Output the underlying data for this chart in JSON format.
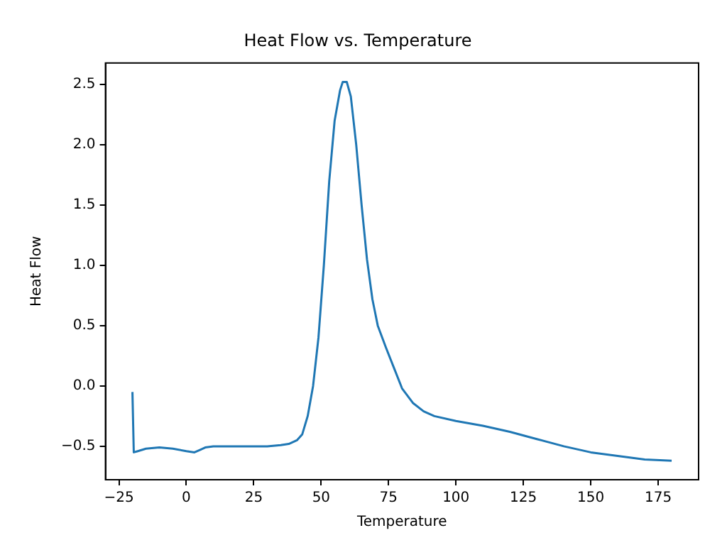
{
  "chart_data": {
    "type": "line",
    "title": "Heat Flow vs. Temperature",
    "xlabel": "Temperature",
    "ylabel": "Heat Flow",
    "x": [
      -20,
      -19.5,
      -18,
      -15,
      -10,
      -5,
      0,
      3,
      5,
      7,
      10,
      20,
      30,
      35,
      38,
      41,
      43,
      45,
      47,
      49,
      51,
      53,
      55,
      57,
      58,
      59.5,
      61,
      63,
      65,
      67,
      69,
      71,
      74,
      77,
      80,
      84,
      88,
      92,
      100,
      110,
      120,
      130,
      140,
      150,
      160,
      170,
      180
    ],
    "series": [
      {
        "color": "#1f77b4",
        "values": [
          -0.05,
          -0.55,
          -0.54,
          -0.52,
          -0.51,
          -0.52,
          -0.54,
          -0.55,
          -0.53,
          -0.51,
          -0.5,
          -0.5,
          -0.5,
          -0.49,
          -0.48,
          -0.45,
          -0.4,
          -0.25,
          0.0,
          0.4,
          1.0,
          1.7,
          2.2,
          2.45,
          2.52,
          2.52,
          2.4,
          2.0,
          1.5,
          1.05,
          0.72,
          0.5,
          0.32,
          0.15,
          -0.02,
          -0.14,
          -0.21,
          -0.25,
          -0.29,
          -0.33,
          -0.38,
          -0.44,
          -0.5,
          -0.55,
          -0.58,
          -0.61,
          -0.62
        ]
      }
    ],
    "xlim": [
      -30,
      190
    ],
    "xticks": [
      -25,
      0,
      25,
      50,
      75,
      100,
      125,
      150,
      175
    ],
    "ylim": [
      -0.777,
      2.677
    ],
    "yticks": [
      {
        "value": -0.5,
        "label": "−0.5"
      },
      {
        "value": 0,
        "label": "0.0"
      },
      0.5,
      {
        "value": 1,
        "label": "1.0"
      },
      1.5,
      {
        "value": 2,
        "label": "2.0"
      },
      2.5
    ],
    "grid": false,
    "legend": false
  }
}
